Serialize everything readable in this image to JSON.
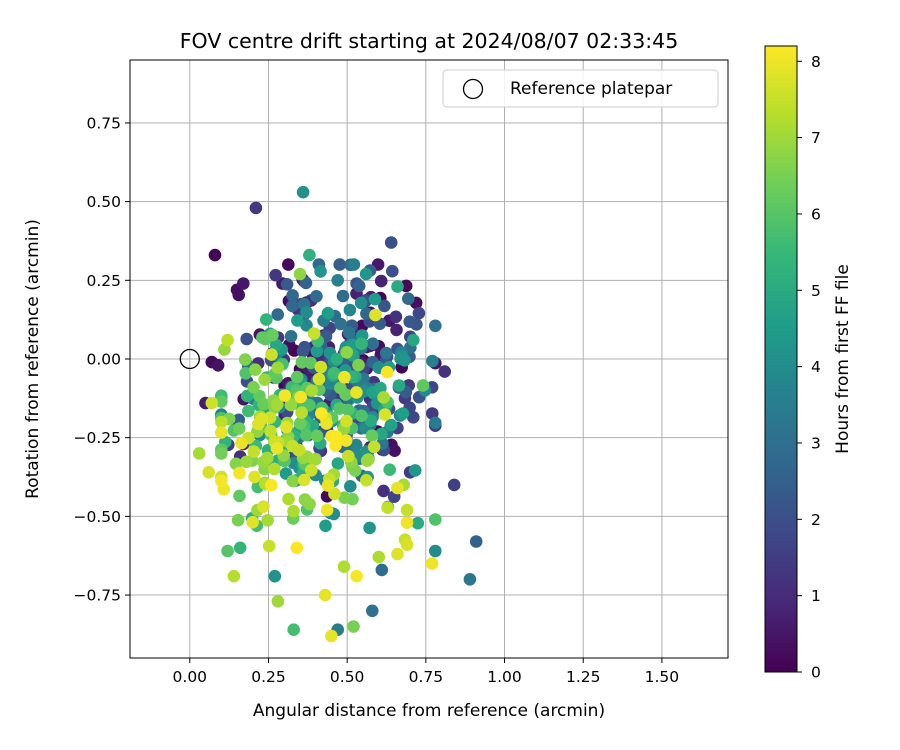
{
  "chart_data": {
    "type": "scatter",
    "title": "FOV centre drift starting at 2024/08/07 02:33:45",
    "xlabel": "Angular distance from reference (arcmin)",
    "ylabel": "Rotation from reference (arcmin)",
    "xlim": [
      -0.19,
      1.71
    ],
    "ylim": [
      -0.95,
      0.95
    ],
    "xticks": [
      0.0,
      0.25,
      0.5,
      0.75,
      1.0,
      1.25,
      1.5
    ],
    "xtick_labels": [
      "0.00",
      "0.25",
      "0.50",
      "0.75",
      "1.00",
      "1.25",
      "1.50"
    ],
    "yticks": [
      -0.75,
      -0.5,
      -0.25,
      0.0,
      0.25,
      0.5,
      0.75
    ],
    "ytick_labels": [
      "−0.75",
      "−0.50",
      "−0.25",
      "0.00",
      "0.25",
      "0.50",
      "0.75"
    ],
    "grid": true,
    "legend": {
      "position": "top-right",
      "entry": "Reference platepar",
      "marker": "open-circle"
    },
    "reference_point": {
      "x": 0.0,
      "y": 0.0
    },
    "colorbar": {
      "label": "Hours from first FF file",
      "min": 0,
      "max": 8.2,
      "ticks": [
        0,
        1,
        2,
        3,
        4,
        5,
        6,
        7,
        8
      ],
      "tick_labels": [
        "0",
        "1",
        "2",
        "3",
        "4",
        "5",
        "6",
        "7",
        "8"
      ],
      "colormap": "viridis",
      "colors": [
        "#440154",
        "#482878",
        "#3e4989",
        "#31688e",
        "#26828e",
        "#1f9e89",
        "#35b779",
        "#6ece58",
        "#b5de2b",
        "#fde725"
      ]
    },
    "point_seed": 20240807,
    "points": [
      {
        "x": 0.08,
        "y": 0.33,
        "t": 0.1
      },
      {
        "x": 0.15,
        "y": 0.22,
        "t": 0.3
      },
      {
        "x": 0.17,
        "y": 0.24,
        "t": 0.5
      },
      {
        "x": 0.07,
        "y": -0.01,
        "t": 0.2
      },
      {
        "x": 0.09,
        "y": -0.02,
        "t": 0.4
      },
      {
        "x": 0.05,
        "y": -0.14,
        "t": 0.6
      },
      {
        "x": 0.15,
        "y": -0.2,
        "t": 0.8
      },
      {
        "x": 0.17,
        "y": -0.27,
        "t": 1.0
      },
      {
        "x": 0.16,
        "y": -0.31,
        "t": 1.1
      },
      {
        "x": 0.21,
        "y": 0.48,
        "t": 1.3
      },
      {
        "x": 0.64,
        "y": 0.37,
        "t": 2.0
      },
      {
        "x": 0.84,
        "y": -0.4,
        "t": 1.6
      },
      {
        "x": 0.77,
        "y": -0.09,
        "t": 1.8
      },
      {
        "x": 0.81,
        "y": -0.04,
        "t": 1.2
      },
      {
        "x": 0.72,
        "y": 0.11,
        "t": 2.2
      },
      {
        "x": 0.36,
        "y": 0.53,
        "t": 4.1
      },
      {
        "x": 0.38,
        "y": 0.33,
        "t": 5.2
      },
      {
        "x": 0.56,
        "y": 0.27,
        "t": 4.3
      },
      {
        "x": 0.66,
        "y": 0.23,
        "t": 5.0
      },
      {
        "x": 0.35,
        "y": 0.27,
        "t": 6.8
      },
      {
        "x": 0.47,
        "y": 0.25,
        "t": 3.6
      },
      {
        "x": 0.53,
        "y": 0.24,
        "t": 2.1
      },
      {
        "x": 0.71,
        "y": 0.06,
        "t": 4.9
      },
      {
        "x": 0.91,
        "y": -0.58,
        "t": 2.6
      },
      {
        "x": 0.89,
        "y": -0.7,
        "t": 3.3
      },
      {
        "x": 0.78,
        "y": -0.61,
        "t": 4.0
      },
      {
        "x": 0.78,
        "y": -0.51,
        "t": 5.9
      },
      {
        "x": 0.7,
        "y": -0.36,
        "t": 1.5
      },
      {
        "x": 0.58,
        "y": -0.8,
        "t": 3.1
      },
      {
        "x": 0.61,
        "y": -0.67,
        "t": 2.9
      },
      {
        "x": 0.47,
        "y": -0.86,
        "t": 3.4
      },
      {
        "x": 0.52,
        "y": -0.85,
        "t": 6.5
      },
      {
        "x": 0.33,
        "y": -0.86,
        "t": 5.7
      },
      {
        "x": 0.45,
        "y": -0.88,
        "t": 7.9
      },
      {
        "x": 0.28,
        "y": -0.77,
        "t": 7.0
      },
      {
        "x": 0.27,
        "y": -0.69,
        "t": 4.2
      },
      {
        "x": 0.14,
        "y": -0.69,
        "t": 7.3
      },
      {
        "x": 0.12,
        "y": -0.61,
        "t": 6.0
      },
      {
        "x": 0.16,
        "y": -0.6,
        "t": 5.4
      },
      {
        "x": 0.03,
        "y": -0.3,
        "t": 7.1
      },
      {
        "x": 0.06,
        "y": -0.36,
        "t": 7.7
      },
      {
        "x": 0.07,
        "y": -0.14,
        "t": 7.6
      },
      {
        "x": 0.12,
        "y": 0.06,
        "t": 7.4
      },
      {
        "x": 0.11,
        "y": 0.03,
        "t": 6.9
      },
      {
        "x": 0.77,
        "y": -0.65,
        "t": 8.0
      },
      {
        "x": 0.66,
        "y": -0.62,
        "t": 7.8
      },
      {
        "x": 0.69,
        "y": -0.59,
        "t": 7.7
      },
      {
        "x": 0.69,
        "y": -0.48,
        "t": 7.5
      },
      {
        "x": 0.69,
        "y": -0.52,
        "t": 8.0
      },
      {
        "x": 0.66,
        "y": -0.41,
        "t": 7.9
      },
      {
        "x": 0.53,
        "y": -0.69,
        "t": 8.1
      },
      {
        "x": 0.43,
        "y": -0.75,
        "t": 7.9
      },
      {
        "x": 0.34,
        "y": -0.6,
        "t": 8.2
      },
      {
        "x": 0.49,
        "y": -0.66,
        "t": 7.2
      }
    ]
  }
}
